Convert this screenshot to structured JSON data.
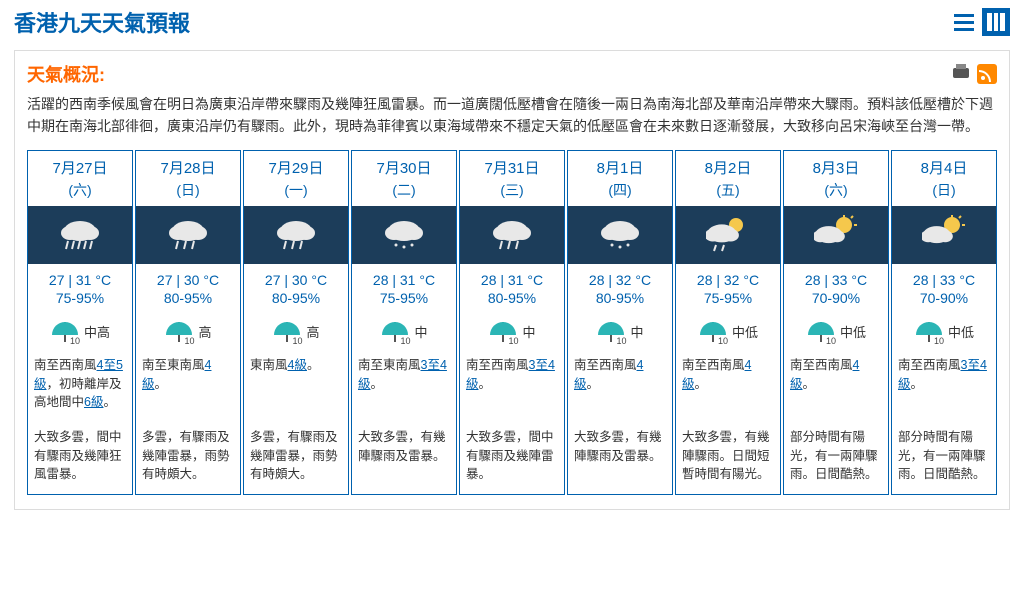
{
  "colors": {
    "brand": "#0061ae",
    "accent": "#ff6600",
    "band": "#1c3d5a",
    "umbrella": "#2bb5b5",
    "rss": "#ff8800",
    "border": "#dcdcdc",
    "text": "#333333",
    "bg": "#ffffff"
  },
  "header": {
    "title": "香港九天天氣預報"
  },
  "overview": {
    "title": "天氣概況:",
    "text": "活躍的西南季候風會在明日為廣東沿岸帶來驟雨及幾陣狂風雷暴。而一道廣闊低壓槽會在隨後一兩日為南海北部及華南沿岸帶來大驟雨。預料該低壓槽於下週中期在南海北部徘徊，廣東沿岸仍有驟雨。此外，現時為菲律賓以東海域帶來不穩定天氣的低壓區會在未來數日逐漸發展，大致移向呂宋海峽至台灣一帶。"
  },
  "psr_levels": {
    "mid_high": "中高",
    "high": "高",
    "mid": "中",
    "mid_low": "中低"
  },
  "forecast": [
    {
      "date": "7月27日",
      "weekday": "(六)",
      "icon": "heavy-rain",
      "temp": "27 | 31 °C",
      "rh": "75-95%",
      "psr": "中高",
      "wind_prefix": "南至西南風",
      "wind_link1": "4至5級",
      "wind_mid": "，初時離岸及高地間中",
      "wind_link2": "6級",
      "wind_suffix": "。",
      "desc": "大致多雲，間中有驟雨及幾陣狂風雷暴。"
    },
    {
      "date": "7月28日",
      "weekday": "(日)",
      "icon": "rain",
      "temp": "27 | 30 °C",
      "rh": "80-95%",
      "psr": "高",
      "wind_prefix": "南至東南風",
      "wind_link1": "4級",
      "wind_mid": "",
      "wind_link2": "",
      "wind_suffix": "。",
      "desc": "多雲，有驟雨及幾陣雷暴，雨勢有時頗大。"
    },
    {
      "date": "7月29日",
      "weekday": "(一)",
      "icon": "rain",
      "temp": "27 | 30 °C",
      "rh": "80-95%",
      "psr": "高",
      "wind_prefix": "東南風",
      "wind_link1": "4級",
      "wind_mid": "",
      "wind_link2": "",
      "wind_suffix": "。",
      "desc": "多雲，有驟雨及幾陣雷暴，雨勢有時頗大。"
    },
    {
      "date": "7月30日",
      "weekday": "(二)",
      "icon": "light-rain",
      "temp": "28 | 31 °C",
      "rh": "75-95%",
      "psr": "中",
      "wind_prefix": "南至東南風",
      "wind_link1": "3至4級",
      "wind_mid": "",
      "wind_link2": "",
      "wind_suffix": "。",
      "desc": "大致多雲，有幾陣驟雨及雷暴。"
    },
    {
      "date": "7月31日",
      "weekday": "(三)",
      "icon": "rain",
      "temp": "28 | 31 °C",
      "rh": "80-95%",
      "psr": "中",
      "wind_prefix": "南至西南風",
      "wind_link1": "3至4級",
      "wind_mid": "",
      "wind_link2": "",
      "wind_suffix": "。",
      "desc": "大致多雲，間中有驟雨及幾陣雷暴。"
    },
    {
      "date": "8月1日",
      "weekday": "(四)",
      "icon": "light-rain",
      "temp": "28 | 32 °C",
      "rh": "80-95%",
      "psr": "中",
      "wind_prefix": "南至西南風",
      "wind_link1": "4級",
      "wind_mid": "",
      "wind_link2": "",
      "wind_suffix": "。",
      "desc": "大致多雲，有幾陣驟雨及雷暴。"
    },
    {
      "date": "8月2日",
      "weekday": "(五)",
      "icon": "sun-rain",
      "temp": "28 | 32 °C",
      "rh": "75-95%",
      "psr": "中低",
      "wind_prefix": "南至西南風",
      "wind_link1": "4級",
      "wind_mid": "",
      "wind_link2": "",
      "wind_suffix": "。",
      "desc": "大致多雲，有幾陣驟雨。日間短暫時間有陽光。"
    },
    {
      "date": "8月3日",
      "weekday": "(六)",
      "icon": "sun-cloud",
      "temp": "28 | 33 °C",
      "rh": "70-90%",
      "psr": "中低",
      "wind_prefix": "南至西南風",
      "wind_link1": "4級",
      "wind_mid": "",
      "wind_link2": "",
      "wind_suffix": "。",
      "desc": "部分時間有陽光，有一兩陣驟雨。日間酷熱。"
    },
    {
      "date": "8月4日",
      "weekday": "(日)",
      "icon": "sun-cloud",
      "temp": "28 | 33 °C",
      "rh": "70-90%",
      "psr": "中低",
      "wind_prefix": "南至西南風",
      "wind_link1": "3至4級",
      "wind_mid": "",
      "wind_link2": "",
      "wind_suffix": "。",
      "desc": "部分時間有陽光，有一兩陣驟雨。日間酷熱。"
    }
  ]
}
